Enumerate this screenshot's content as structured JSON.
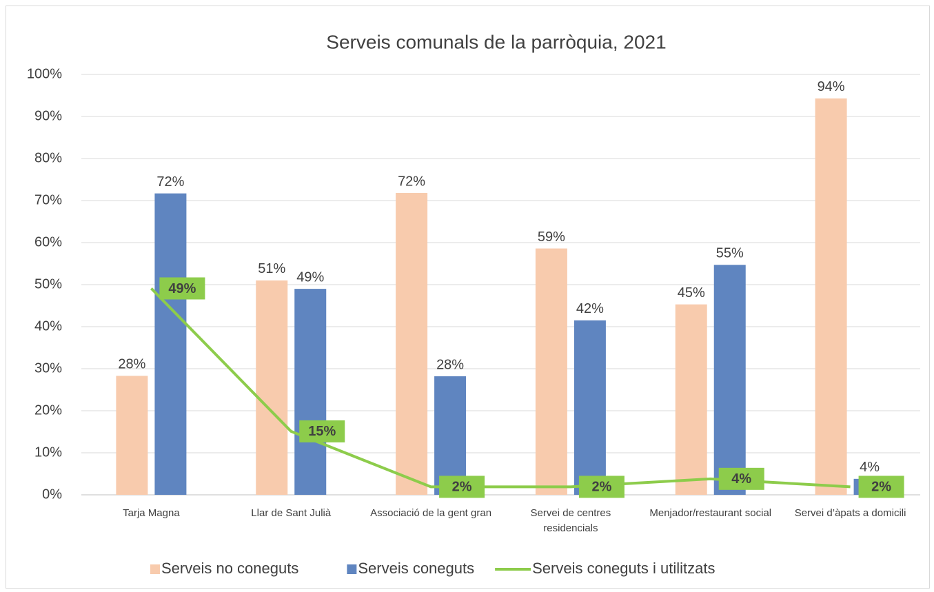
{
  "chart_data": {
    "type": "bar-line",
    "title": "Serveis comunals de la parròquia, 2021",
    "categories": [
      "Tarja Magna",
      "Llar de Sant Julià",
      "Associació de la gent gran",
      "Servei de centres residencials",
      "Menjador/restaurant social",
      "Servei d’àpats a domicili"
    ],
    "series": [
      {
        "name": "Serveis no coneguts",
        "color": "#f8cbad",
        "type": "bar",
        "values": [
          28.3,
          51,
          71.8,
          58.6,
          45.3,
          94.3
        ],
        "value_labels": [
          "28%",
          "51%",
          "72%",
          "59%",
          "45%",
          "94%"
        ]
      },
      {
        "name": "Serveis coneguts",
        "color": "#5f85c0",
        "type": "bar",
        "values": [
          71.7,
          49,
          28.2,
          41.5,
          54.7,
          3.8
        ],
        "value_labels": [
          "72%",
          "49%",
          "28%",
          "42%",
          "55%",
          "4%"
        ]
      },
      {
        "name": "Serveis coneguts i utilitzats",
        "color": "#8dcc4b",
        "type": "line",
        "values": [
          49.1,
          15.1,
          1.9,
          1.9,
          3.8,
          1.9
        ],
        "value_labels": [
          "49%",
          "15%",
          "2%",
          "2%",
          "4%",
          "2%"
        ]
      }
    ],
    "ylim": [
      0,
      100
    ],
    "yticks": [
      {
        "value": 0,
        "label": "0%"
      },
      {
        "value": 10,
        "label": "10%"
      },
      {
        "value": 20,
        "label": "20%"
      },
      {
        "value": 30,
        "label": "30%"
      },
      {
        "value": 40,
        "label": "40%"
      },
      {
        "value": 50,
        "label": "50%"
      },
      {
        "value": 60,
        "label": "60%"
      },
      {
        "value": 70,
        "label": "70%"
      },
      {
        "value": 80,
        "label": "80%"
      },
      {
        "value": 90,
        "label": "90%"
      },
      {
        "value": 100,
        "label": "100%"
      }
    ],
    "grid": true,
    "legend": "bottom"
  }
}
